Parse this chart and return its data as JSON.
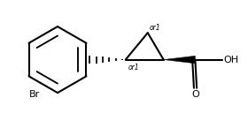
{
  "background_color": "#ffffff",
  "line_color": "#000000",
  "line_width": 1.5,
  "text_color": "#000000",
  "br_label": "Br",
  "oh_label": "OH",
  "o_label": "O",
  "or1_label": "or1",
  "font_size_atom": 8,
  "font_size_stereo": 5.5
}
